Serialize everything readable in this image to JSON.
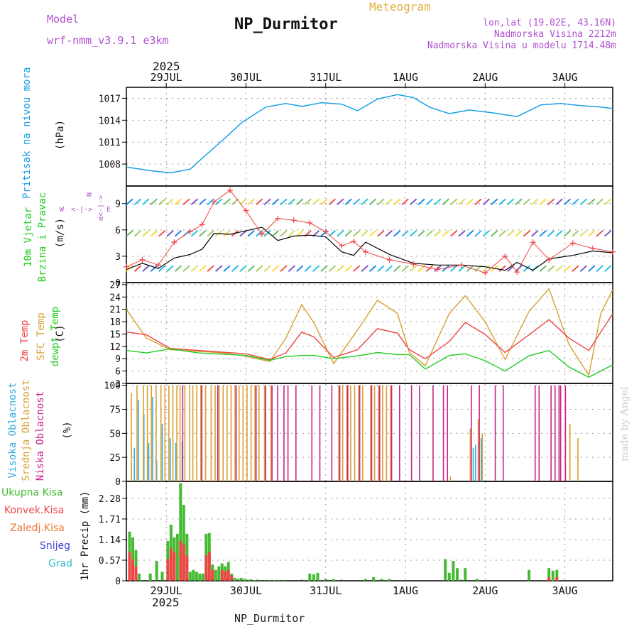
{
  "header": {
    "title": "NP_Durmitor",
    "subtitle": "Meteogram",
    "model_label": "Model",
    "model_value": "wrf-nmm_v3.9.1 e3km",
    "lonlat": "lon,lat (19.02E, 43.16N)",
    "elevation": "Nadmorska Visina 2212m",
    "model_elevation": "Nadmorska Visina u modelu 1714.48m",
    "year_top": "2025",
    "year_bottom": "2025",
    "footer": "NP_Durmitor",
    "watermark": "made by Angel"
  },
  "colors": {
    "pressure": "#1aa0e6",
    "temp2m": "#ee4444",
    "sfc": "#d9a030",
    "dew": "#22cc22",
    "high": "#33aadd",
    "mid": "#d9a030",
    "low": "#cc2288",
    "total": "#44bb33",
    "conv": "#ee4444",
    "frozen": "#ee7733",
    "snow": "#4444dd",
    "grad": "#33bbcc",
    "purple": "#b050d0",
    "gold": "#e0b040"
  },
  "chart_data": [
    {
      "type": "line",
      "id": "pressure",
      "title": "Pritisak na nivou mora",
      "ylabel": "(hPa)",
      "yticks": [
        1008,
        1011,
        1014,
        1017
      ],
      "ylim": [
        1005,
        1018.5
      ],
      "series": [
        {
          "name": "Pritisak na nivou mora",
          "x": [
            0.0,
            0.3,
            0.55,
            0.8,
            0.95,
            1.2,
            1.45,
            1.75,
            2.0,
            2.2,
            2.45,
            2.7,
            2.9,
            3.15,
            3.4,
            3.6,
            3.8,
            4.05,
            4.3,
            4.6,
            4.9,
            5.2,
            5.45,
            5.7,
            5.95,
            6.1
          ],
          "values": [
            1007.6,
            1007.1,
            1006.8,
            1007.3,
            1008.8,
            1011.2,
            1013.7,
            1015.8,
            1016.3,
            1015.9,
            1016.4,
            1016.2,
            1015.3,
            1016.9,
            1017.5,
            1017.1,
            1015.8,
            1014.9,
            1015.4,
            1015.0,
            1014.5,
            1016.1,
            1016.3,
            1016.0,
            1015.8,
            1015.6
          ]
        }
      ]
    },
    {
      "type": "line",
      "id": "wind",
      "title": "10m Vjetar Brzina i Pravac",
      "ylabel": "(m/s)",
      "yticks": [
        0,
        3,
        6,
        9
      ],
      "ylim": [
        0,
        11
      ],
      "compass": {
        "n": "N",
        "s": "S",
        "w": "W",
        "e": "E",
        "arrow": "<-|->",
        "symbols": "α<-|->"
      },
      "series": [
        {
          "name": "Brzina",
          "x": [
            0.0,
            0.2,
            0.4,
            0.6,
            0.8,
            0.95,
            1.1,
            1.3,
            1.5,
            1.7,
            1.9,
            2.1,
            2.3,
            2.5,
            2.7,
            2.85,
            3.0,
            3.3,
            3.6,
            3.9,
            4.2,
            4.5,
            4.75,
            4.9,
            5.1,
            5.3,
            5.6,
            5.85,
            6.1
          ],
          "values": [
            1.5,
            2.2,
            1.6,
            2.8,
            3.2,
            3.8,
            5.6,
            5.5,
            5.9,
            6.3,
            4.8,
            5.3,
            5.4,
            5.2,
            3.5,
            3.1,
            4.6,
            3.2,
            2.2,
            2.0,
            2.0,
            1.8,
            1.4,
            2.3,
            1.4,
            2.7,
            3.1,
            3.6,
            3.4
          ]
        },
        {
          "name": "Udari",
          "x": [
            0.0,
            0.2,
            0.4,
            0.6,
            0.8,
            0.95,
            1.1,
            1.3,
            1.5,
            1.7,
            1.9,
            2.1,
            2.3,
            2.5,
            2.7,
            2.85,
            3.0,
            3.3,
            3.6,
            3.9,
            4.2,
            4.5,
            4.75,
            4.9,
            5.1,
            5.3,
            5.6,
            5.85,
            6.1
          ],
          "values": [
            1.8,
            2.6,
            2.0,
            4.6,
            5.8,
            6.6,
            9.2,
            10.5,
            8.2,
            5.5,
            7.3,
            7.1,
            6.8,
            5.8,
            4.2,
            4.7,
            3.5,
            2.6,
            2.1,
            1.5,
            2.0,
            1.1,
            3.0,
            1.2,
            4.6,
            2.6,
            4.5,
            3.9,
            3.5
          ]
        }
      ]
    },
    {
      "type": "line",
      "id": "temperature",
      "title": "2m Temp / SFC Temp / dewpt Temp",
      "ylabel": "(C)",
      "yticks": [
        3,
        6,
        9,
        12,
        15,
        18,
        21,
        24,
        27
      ],
      "ylim": [
        3,
        27.5
      ],
      "series": [
        {
          "name": "2m Temp",
          "x": [
            0.0,
            0.25,
            0.55,
            0.9,
            1.2,
            1.5,
            1.8,
            2.0,
            2.2,
            2.35,
            2.6,
            2.9,
            3.15,
            3.4,
            3.55,
            3.75,
            4.05,
            4.25,
            4.5,
            4.75,
            5.05,
            5.3,
            5.55,
            5.8,
            6.1
          ],
          "values": [
            15.5,
            14.8,
            11.5,
            11.0,
            10.6,
            10.2,
            8.8,
            10.4,
            15.5,
            14.3,
            9.3,
            11.2,
            16.3,
            15.2,
            11.2,
            9.0,
            13.2,
            17.8,
            14.9,
            10.5,
            14.8,
            18.5,
            14.0,
            11.0,
            19.9
          ]
        },
        {
          "name": "SFC Temp",
          "x": [
            0.0,
            0.25,
            0.55,
            0.9,
            1.2,
            1.5,
            1.8,
            2.0,
            2.2,
            2.35,
            2.6,
            2.9,
            3.15,
            3.4,
            3.55,
            3.75,
            4.05,
            4.25,
            4.5,
            4.75,
            5.05,
            5.3,
            5.55,
            5.8,
            5.95,
            6.1
          ],
          "values": [
            21.0,
            14.0,
            11.2,
            10.8,
            10.4,
            9.6,
            8.3,
            14.0,
            22.1,
            17.8,
            7.8,
            16.0,
            23.2,
            20.0,
            10.5,
            7.3,
            20.0,
            24.3,
            18.0,
            8.8,
            20.5,
            26.0,
            12.5,
            5.0,
            20.0,
            25.8
          ]
        },
        {
          "name": "dewpt Temp",
          "x": [
            0.0,
            0.25,
            0.55,
            0.9,
            1.2,
            1.5,
            1.8,
            2.0,
            2.2,
            2.35,
            2.6,
            2.9,
            3.15,
            3.4,
            3.55,
            3.75,
            4.05,
            4.25,
            4.5,
            4.75,
            5.05,
            5.3,
            5.55,
            5.8,
            6.1
          ],
          "values": [
            11.0,
            10.4,
            11.4,
            10.4,
            10.1,
            9.8,
            8.6,
            9.5,
            9.8,
            9.8,
            9.0,
            9.7,
            10.5,
            10.0,
            10.0,
            6.5,
            9.8,
            10.2,
            8.5,
            6.0,
            9.7,
            11.0,
            7.0,
            4.5,
            7.5
          ]
        }
      ]
    },
    {
      "type": "bar",
      "id": "cloud",
      "title": "Visoka / Srednja / Niska Oblacnost",
      "ylabel": "(%)",
      "yticks": [
        0,
        25,
        50,
        75,
        100
      ],
      "ylim": [
        0,
        102
      ],
      "series": [
        {
          "name": "Visoka Oblacnost",
          "x": [
            0.1,
            0.15,
            0.22,
            0.28,
            0.33,
            0.38,
            0.45,
            0.55,
            0.62,
            0.7,
            4.35,
            4.38,
            4.42,
            4.45
          ],
          "values": [
            35,
            85,
            70,
            40,
            88,
            22,
            60,
            45,
            40,
            42,
            35,
            38,
            40,
            45
          ]
        },
        {
          "name": "Srednja Oblacnost",
          "x": [
            0.05,
            0.12,
            0.2,
            0.25,
            0.3,
            0.36,
            0.42,
            0.47,
            0.52,
            0.57,
            0.62,
            0.66,
            0.72,
            0.78,
            0.82,
            0.87,
            0.92,
            0.98,
            1.05,
            1.1,
            1.15,
            1.2,
            1.25,
            1.3,
            1.35,
            1.4,
            1.45,
            1.5,
            1.55,
            1.6,
            1.65,
            1.72,
            1.8,
            2.65,
            2.7,
            2.75,
            2.8,
            2.85,
            2.9,
            2.95,
            3.05,
            3.1,
            3.15,
            3.2,
            3.25,
            3.3,
            4.05,
            4.3,
            4.4,
            4.45,
            5.55,
            5.65
          ],
          "values": [
            92,
            100,
            100,
            100,
            100,
            100,
            100,
            100,
            100,
            100,
            100,
            100,
            100,
            100,
            100,
            100,
            100,
            100,
            100,
            100,
            100,
            100,
            100,
            100,
            100,
            100,
            100,
            100,
            100,
            100,
            100,
            100,
            100,
            100,
            100,
            100,
            100,
            100,
            100,
            100,
            100,
            100,
            100,
            100,
            100,
            100,
            5,
            55,
            65,
            50,
            60,
            45
          ]
        },
        {
          "name": "Niska Oblacnost",
          "x": [
            0.68,
            0.92,
            1.12,
            1.35,
            1.6,
            1.72,
            1.8,
            1.87,
            1.95,
            2.0,
            2.1,
            2.3,
            2.4,
            2.55,
            2.65,
            2.75,
            2.9,
            3.05,
            3.15,
            3.3,
            3.4,
            3.55,
            3.65,
            3.82,
            3.95,
            4.0,
            4.3,
            4.4,
            4.6,
            4.7,
            5.1,
            5.15,
            5.3,
            5.35,
            5.4,
            5.42,
            5.48
          ],
          "values": [
            100,
            100,
            100,
            100,
            100,
            100,
            100,
            100,
            100,
            100,
            100,
            100,
            100,
            100,
            100,
            100,
            100,
            100,
            100,
            100,
            100,
            100,
            100,
            100,
            100,
            100,
            100,
            100,
            100,
            100,
            100,
            100,
            100,
            100,
            100,
            100,
            100
          ]
        }
      ]
    },
    {
      "type": "bar",
      "id": "precip",
      "title": "1hr Precip",
      "ylabel": "1hr Precip (mm)",
      "yticks": [
        0,
        0.57,
        1.14,
        1.71,
        2.28
      ],
      "ylim": [
        0,
        2.75
      ],
      "legend": [
        "Ukupna Kisa",
        "Konvek.Kisa",
        "Zaledj.Kisa",
        "Snijeg",
        "Grad"
      ],
      "series": [
        {
          "name": "Ukupna Kisa",
          "x": [
            0.04,
            0.08,
            0.12,
            0.16,
            0.3,
            0.38,
            0.45,
            0.52,
            0.56,
            0.6,
            0.64,
            0.68,
            0.72,
            0.76,
            0.8,
            0.84,
            0.88,
            0.92,
            0.96,
            1.0,
            1.04,
            1.08,
            1.12,
            1.16,
            1.2,
            1.24,
            1.28,
            1.32,
            1.36,
            1.4,
            1.44,
            1.48,
            1.52,
            1.56,
            1.6,
            1.65,
            1.7,
            1.75,
            1.8,
            1.85,
            1.9,
            2.0,
            2.2,
            2.3,
            2.35,
            2.4,
            2.5,
            2.6,
            2.7,
            3.0,
            3.1,
            3.2,
            3.3,
            4.0,
            4.05,
            4.1,
            4.15,
            4.2,
            4.25,
            4.4,
            5.05,
            5.3,
            5.35,
            5.4
          ],
          "values": [
            1.36,
            1.2,
            0.85,
            0.2,
            0.2,
            0.55,
            0.25,
            1.1,
            1.55,
            1.2,
            1.3,
            2.7,
            2.1,
            1.3,
            0.25,
            0.3,
            0.25,
            0.2,
            0.2,
            1.3,
            1.32,
            0.45,
            0.3,
            0.4,
            0.48,
            0.4,
            0.52,
            0.2,
            0.08,
            0.05,
            0.08,
            0.05,
            0.03,
            0.04,
            0.02,
            0.03,
            0.02,
            0.01,
            0.01,
            0.02,
            0.02,
            0.02,
            0.03,
            0.2,
            0.18,
            0.22,
            0.05,
            0.05,
            0.03,
            0.05,
            0.1,
            0.05,
            0.05,
            0.6,
            0.22,
            0.55,
            0.35,
            0.03,
            0.35,
            0.05,
            0.3,
            0.35,
            0.28,
            0.3
          ]
        },
        {
          "name": "Konvek.Kisa",
          "x": [
            0.04,
            0.08,
            0.12,
            0.52,
            0.56,
            0.6,
            0.68,
            0.72,
            0.76,
            1.0,
            1.04,
            1.08,
            1.2,
            1.24,
            1.28,
            1.32,
            5.3,
            5.4
          ],
          "values": [
            0.8,
            0.6,
            0.4,
            0.6,
            0.9,
            0.8,
            1.1,
            1.0,
            0.7,
            0.7,
            0.8,
            0.3,
            0.3,
            0.25,
            0.3,
            0.15,
            0.1,
            0.1
          ]
        }
      ]
    }
  ],
  "axis": {
    "top_labels": [
      "29JUL",
      "30JUL",
      "31JUL",
      "1AUG",
      "2AUG",
      "3AUG"
    ],
    "bottom_labels": [
      "29JUL",
      "30JUL",
      "31JUL",
      "1AUG",
      "2AUG",
      "3AUG"
    ],
    "x_positions": [
      0.5,
      1.5,
      2.5,
      3.5,
      4.5,
      5.5
    ],
    "xlim": [
      0,
      6.1
    ]
  },
  "panel_labels": {
    "pressure": "Pritisak na nivou mora",
    "pressure_unit": "(hPa)",
    "wind1": "10m Vjetar",
    "wind2": "Brzina i Pravac",
    "wind_unit": "(m/s)",
    "temp_2m": "2m Temp",
    "temp_sfc": "SFC Temp",
    "temp_dew": "dewpt Temp",
    "temp_unit": "(C)",
    "cloud_high": "Visoka Oblacnost",
    "cloud_mid": "Srednja Oblacnost",
    "cloud_low": "Niska Oblacnost",
    "cloud_unit": "(%)",
    "precip_unit": "1hr Precip (mm)",
    "leg_total": "Ukupna Kisa",
    "leg_conv": "Konvek.Kisa",
    "leg_frozen": "Zaledj.Kisa",
    "leg_snow": "Snijeg",
    "leg_grad": "Grad"
  }
}
